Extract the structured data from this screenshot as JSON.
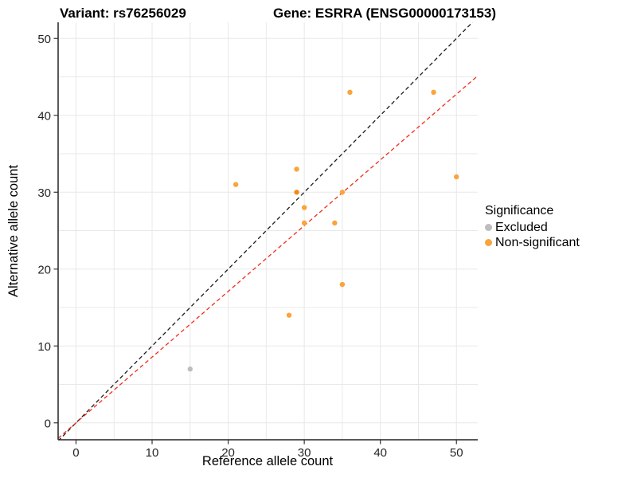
{
  "figure": {
    "title_variant": "Variant: rs76256029",
    "title_gene": "Gene: ESRRA (ENSG00000173153)"
  },
  "chart_data": {
    "type": "scatter",
    "title": "Variant: rs76256029   Gene: ESRRA (ENSG00000173153)",
    "xlabel": "Reference allele count",
    "ylabel": "Alternative allele count",
    "x_ticks": [
      0,
      10,
      20,
      30,
      40,
      50
    ],
    "y_ticks": [
      0,
      10,
      20,
      30,
      40,
      50
    ],
    "grid_step": 5,
    "grid_min": 0,
    "grid_max": 50,
    "xlim": [
      -2.35,
      52.8
    ],
    "ylim": [
      -2.2,
      52.1
    ],
    "grid_color": "#e8e8e8",
    "axis_color": "#222222",
    "series": [
      {
        "name": "Excluded",
        "color": "#bdbdbd",
        "points": [
          {
            "x": 15,
            "y": 7
          }
        ]
      },
      {
        "name": "Non-significant",
        "color": "#faa43c",
        "points": [
          {
            "x": 21,
            "y": 31
          },
          {
            "x": 28,
            "y": 14
          },
          {
            "x": 29,
            "y": 33
          },
          {
            "x": 29,
            "y": 30,
            "color": "#f2891b"
          },
          {
            "x": 30,
            "y": 28
          },
          {
            "x": 30,
            "y": 26
          },
          {
            "x": 34,
            "y": 26
          },
          {
            "x": 35,
            "y": 30
          },
          {
            "x": 35,
            "y": 18
          },
          {
            "x": 36,
            "y": 43
          },
          {
            "x": 47,
            "y": 43
          },
          {
            "x": 50,
            "y": 32
          }
        ]
      }
    ],
    "reference_lines": [
      {
        "name": "identity-line",
        "slope": 1,
        "intercept": 0,
        "color": "#1a1a1a",
        "style": "dashed"
      },
      {
        "name": "expected-ratio-line",
        "slope": 0.855,
        "intercept": 0,
        "color": "#f22c19",
        "style": "dashed"
      }
    ],
    "legend": {
      "title": "Significance",
      "position": "right",
      "entries": [
        {
          "label": "Excluded",
          "color": "#bdbdbd"
        },
        {
          "label": "Non-significant",
          "color": "#faa43c"
        }
      ]
    }
  }
}
